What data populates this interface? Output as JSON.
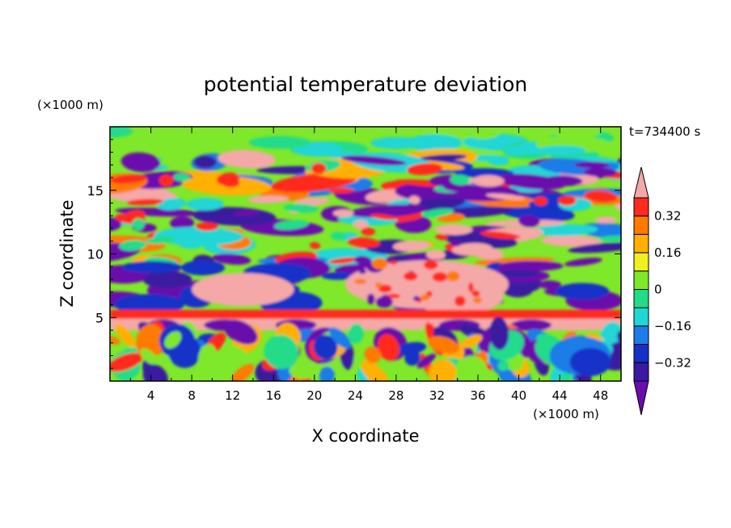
{
  "chart_data": {
    "type": "heatmap",
    "title": "potential temperature deviation",
    "xlabel": "X coordinate",
    "ylabel": "Z coordinate",
    "x_unit": "(×1000 m)",
    "y_unit": "(×1000 m)",
    "time_label": "t=734400 s",
    "xlim": [
      0,
      50
    ],
    "ylim": [
      0,
      20
    ],
    "xticks": [
      4,
      8,
      12,
      16,
      20,
      24,
      28,
      32,
      36,
      40,
      44,
      48
    ],
    "yticks": [
      5,
      10,
      15
    ],
    "colorbar": {
      "levels": [
        -0.4,
        -0.32,
        -0.24,
        -0.16,
        -0.08,
        0,
        0.08,
        0.16,
        0.24,
        0.32,
        0.4
      ],
      "labels": [
        "0.32",
        "0.16",
        "0",
        "-0.16",
        "-0.32"
      ],
      "label_values": [
        0.32,
        0.16,
        0,
        -0.16,
        -0.32
      ],
      "colors": [
        "#6a0dad",
        "#3a1aa0",
        "#1530c8",
        "#1e7be8",
        "#22d6d6",
        "#22dc8a",
        "#7fe82a",
        "#f0f020",
        "#ffb000",
        "#ff7a00",
        "#ff2a1e",
        "#f4a8a8"
      ]
    },
    "bands": [
      {
        "z": [
          17.5,
          20
        ],
        "description": "near-zero field"
      },
      {
        "z": [
          9,
          17.5
        ],
        "description": "alternating positive/negative layers"
      },
      {
        "z": [
          5.5,
          8.5
        ],
        "description": "large positive patches near x 8-14 and 24-38"
      },
      {
        "z": [
          4,
          5
        ],
        "description": "thin strong positive layer with negative bumps"
      },
      {
        "z": [
          0,
          4
        ],
        "description": "turbulent mixed lower layer"
      }
    ]
  },
  "colors": {
    "frame": "#000000",
    "background": "#ffffff"
  }
}
